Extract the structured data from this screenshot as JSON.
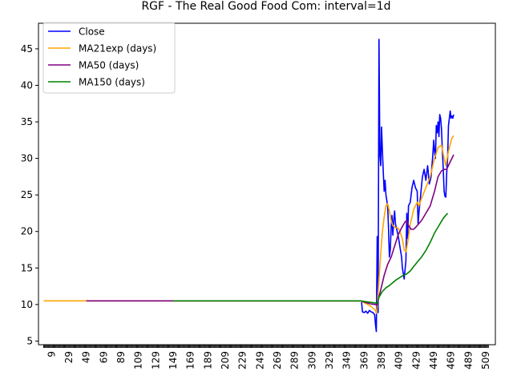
{
  "chart_data": {
    "type": "line",
    "title": "RGF - The Real Good Food Com: interval=1d",
    "xlabel": "",
    "ylabel": "",
    "xlim": [
      -6,
      520
    ],
    "ylim": [
      4.5,
      48.5
    ],
    "x_ticks": [
      "9",
      "29",
      "49",
      "69",
      "89",
      "109",
      "129",
      "149",
      "169",
      "189",
      "209",
      "229",
      "249",
      "269",
      "289",
      "309",
      "329",
      "349",
      "369",
      "389",
      "409",
      "429",
      "449",
      "469",
      "489",
      "509"
    ],
    "y_ticks": [
      5,
      10,
      15,
      20,
      25,
      30,
      35,
      40,
      45
    ],
    "legend_position": "top-left",
    "grid": false,
    "series": [
      {
        "name": "Close",
        "color": "#0000ff",
        "points": [
          [
            366,
            10.3
          ],
          [
            367,
            9.0
          ],
          [
            369,
            8.9
          ],
          [
            371,
            9.1
          ],
          [
            373,
            8.8
          ],
          [
            375,
            9.2
          ],
          [
            377,
            9.0
          ],
          [
            379,
            8.9
          ],
          [
            381,
            8.6
          ],
          [
            382,
            7.2
          ],
          [
            383,
            6.3
          ],
          [
            384,
            19.3
          ],
          [
            385,
            8.9
          ],
          [
            386,
            46.3
          ],
          [
            387,
            30.5
          ],
          [
            388,
            29.0
          ],
          [
            389,
            34.3
          ],
          [
            390,
            31.0
          ],
          [
            391,
            28.0
          ],
          [
            392,
            25.5
          ],
          [
            393,
            27.0
          ],
          [
            394,
            25.0
          ],
          [
            396,
            23.5
          ],
          [
            397,
            20.5
          ],
          [
            398,
            16.5
          ],
          [
            399,
            17.5
          ],
          [
            400,
            20.5
          ],
          [
            401,
            22.2
          ],
          [
            402,
            19.5
          ],
          [
            403,
            21.5
          ],
          [
            404,
            22.8
          ],
          [
            405,
            21.0
          ],
          [
            406,
            20.5
          ],
          [
            408,
            19.5
          ],
          [
            410,
            18.0
          ],
          [
            412,
            16.5
          ],
          [
            413,
            15.0
          ],
          [
            415,
            13.5
          ],
          [
            417,
            16.0
          ],
          [
            418,
            22.5
          ],
          [
            419,
            19.0
          ],
          [
            420,
            23.5
          ],
          [
            422,
            24.0
          ],
          [
            424,
            26.0
          ],
          [
            426,
            27.0
          ],
          [
            428,
            26.0
          ],
          [
            430,
            25.5
          ],
          [
            431,
            21.0
          ],
          [
            432,
            22.5
          ],
          [
            434,
            25.0
          ],
          [
            436,
            27.5
          ],
          [
            438,
            28.5
          ],
          [
            440,
            27.0
          ],
          [
            442,
            29.0
          ],
          [
            444,
            26.5
          ],
          [
            446,
            27.5
          ],
          [
            448,
            30.5
          ],
          [
            449,
            32.5
          ],
          [
            450,
            31.0
          ],
          [
            451,
            30.0
          ],
          [
            452,
            34.5
          ],
          [
            453,
            33.5
          ],
          [
            454,
            35.0
          ],
          [
            455,
            33.0
          ],
          [
            456,
            36.0
          ],
          [
            457,
            35.5
          ],
          [
            458,
            34.0
          ],
          [
            459,
            31.0
          ],
          [
            460,
            28.5
          ],
          [
            461,
            25.5
          ],
          [
            462,
            24.8
          ],
          [
            463,
            24.7
          ],
          [
            464,
            28.0
          ],
          [
            465,
            30.0
          ],
          [
            466,
            34.5
          ],
          [
            467,
            35.5
          ],
          [
            468,
            36.5
          ],
          [
            469,
            35.5
          ],
          [
            470,
            35.8
          ],
          [
            471,
            35.5
          ],
          [
            472,
            36.0
          ]
        ]
      },
      {
        "name": "MA21exp (days)",
        "color": "#ffa500",
        "points": [
          [
            0,
            10.5
          ],
          [
            21,
            10.5
          ],
          [
            365,
            10.5
          ],
          [
            370,
            10.2
          ],
          [
            376,
            9.8
          ],
          [
            382,
            9.2
          ],
          [
            383,
            8.8
          ],
          [
            384,
            9.8
          ],
          [
            386,
            13.5
          ],
          [
            388,
            17.0
          ],
          [
            390,
            20.0
          ],
          [
            392,
            22.0
          ],
          [
            394,
            23.5
          ],
          [
            396,
            23.8
          ],
          [
            398,
            22.8
          ],
          [
            400,
            21.5
          ],
          [
            402,
            20.8
          ],
          [
            405,
            20.5
          ],
          [
            408,
            20.5
          ],
          [
            410,
            20.0
          ],
          [
            413,
            19.0
          ],
          [
            415,
            17.5
          ],
          [
            417,
            17.2
          ],
          [
            419,
            18.5
          ],
          [
            422,
            21.0
          ],
          [
            426,
            23.0
          ],
          [
            430,
            24.0
          ],
          [
            432,
            23.5
          ],
          [
            435,
            24.5
          ],
          [
            440,
            26.0
          ],
          [
            445,
            27.5
          ],
          [
            450,
            30.0
          ],
          [
            454,
            31.5
          ],
          [
            458,
            31.8
          ],
          [
            461,
            30.0
          ],
          [
            463,
            29.0
          ],
          [
            466,
            31.0
          ],
          [
            470,
            32.8
          ],
          [
            472,
            33.1
          ]
        ]
      },
      {
        "name": "MA50 (days)",
        "color": "#800080",
        "points": [
          [
            49,
            10.5
          ],
          [
            150,
            10.5
          ],
          [
            365,
            10.5
          ],
          [
            370,
            10.3
          ],
          [
            376,
            10.1
          ],
          [
            382,
            10.0
          ],
          [
            384,
            10.0
          ],
          [
            388,
            12.0
          ],
          [
            392,
            14.0
          ],
          [
            396,
            15.5
          ],
          [
            400,
            16.5
          ],
          [
            404,
            18.0
          ],
          [
            408,
            19.5
          ],
          [
            412,
            20.5
          ],
          [
            416,
            21.3
          ],
          [
            418,
            21.5
          ],
          [
            420,
            20.8
          ],
          [
            423,
            20.3
          ],
          [
            426,
            20.3
          ],
          [
            430,
            20.8
          ],
          [
            435,
            21.5
          ],
          [
            440,
            22.5
          ],
          [
            445,
            23.5
          ],
          [
            450,
            25.5
          ],
          [
            454,
            27.5
          ],
          [
            458,
            28.3
          ],
          [
            461,
            28.5
          ],
          [
            464,
            28.5
          ],
          [
            467,
            29.3
          ],
          [
            470,
            30.0
          ],
          [
            472,
            30.5
          ]
        ]
      },
      {
        "name": "MA150 (days)",
        "color": "#008000",
        "points": [
          [
            149,
            10.5
          ],
          [
            250,
            10.5
          ],
          [
            365,
            10.5
          ],
          [
            370,
            10.4
          ],
          [
            376,
            10.3
          ],
          [
            382,
            10.2
          ],
          [
            384,
            10.2
          ],
          [
            386,
            11.0
          ],
          [
            390,
            11.8
          ],
          [
            394,
            12.3
          ],
          [
            398,
            12.6
          ],
          [
            402,
            13.0
          ],
          [
            406,
            13.4
          ],
          [
            410,
            13.7
          ],
          [
            414,
            14.0
          ],
          [
            418,
            14.2
          ],
          [
            422,
            14.6
          ],
          [
            426,
            15.2
          ],
          [
            430,
            15.8
          ],
          [
            435,
            16.5
          ],
          [
            440,
            17.4
          ],
          [
            445,
            18.5
          ],
          [
            450,
            19.8
          ],
          [
            455,
            20.8
          ],
          [
            460,
            21.8
          ],
          [
            465,
            22.5
          ]
        ]
      }
    ]
  }
}
